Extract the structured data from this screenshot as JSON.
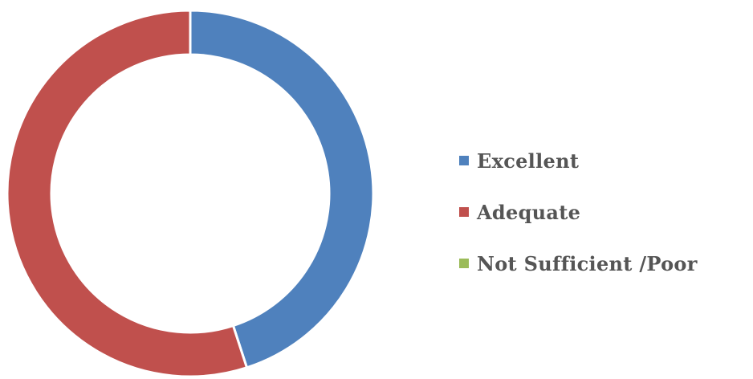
{
  "chart_data": {
    "type": "pie",
    "donut": true,
    "categories": [
      "Excellent",
      "Adequate",
      "Not Sufficient /Poor"
    ],
    "values": [
      45,
      55,
      0
    ],
    "colors": [
      "#4F81BD",
      "#C0504D",
      "#9BBB59"
    ],
    "legend_position": "right"
  }
}
